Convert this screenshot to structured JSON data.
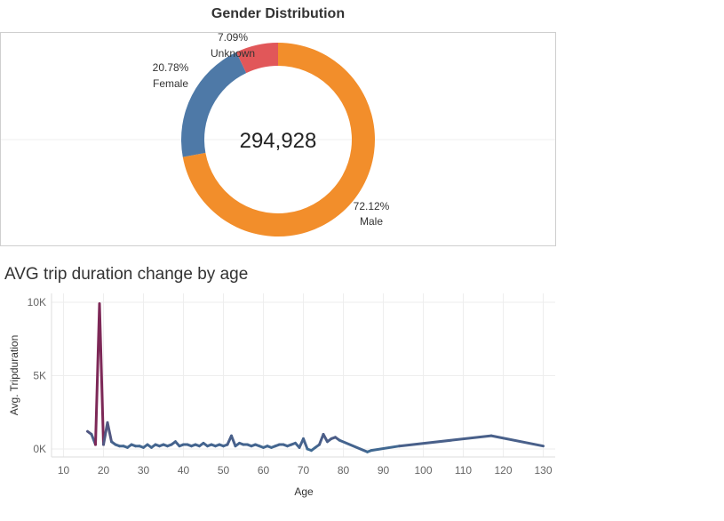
{
  "chart_data": [
    {
      "type": "pie",
      "title": "Gender Distribution",
      "center_label": "294,928",
      "slices": [
        {
          "name": "Male",
          "value": 72.12,
          "label": "72.12%",
          "color": "#F28E2B"
        },
        {
          "name": "Female",
          "value": 20.78,
          "label": "20.78%",
          "color": "#4E79A7"
        },
        {
          "name": "Unknown",
          "value": 7.09,
          "label": "7.09%",
          "color": "#E15759"
        }
      ]
    },
    {
      "type": "line",
      "title": "AVG trip duration change by age",
      "xlabel": "Age",
      "ylabel": "Avg. Tripduration",
      "xlim": [
        7,
        133
      ],
      "ylim": [
        0,
        10000
      ],
      "x_ticks": [
        10,
        20,
        30,
        40,
        50,
        60,
        70,
        80,
        90,
        100,
        110,
        120,
        130
      ],
      "y_ticks": [
        {
          "value": 0,
          "label": "0K"
        },
        {
          "value": 5000,
          "label": "5K"
        },
        {
          "value": 10000,
          "label": "10K"
        }
      ],
      "line_color": "#3E6B94",
      "peak_color": "#8A1A4A",
      "grid": true,
      "series": [
        {
          "x": [
            16,
            17,
            18,
            19,
            20,
            21,
            22,
            23,
            24,
            25,
            26,
            27,
            28,
            29,
            30,
            31,
            32,
            33,
            34,
            35,
            36,
            37,
            38,
            39,
            40,
            41,
            42,
            43,
            44,
            45,
            46,
            47,
            48,
            49,
            50,
            51,
            52,
            53,
            54,
            55,
            56,
            57,
            58,
            59,
            60,
            61,
            62,
            63,
            64,
            65,
            66,
            67,
            68,
            69,
            70,
            71,
            72,
            73,
            74,
            75,
            76,
            77,
            78,
            79,
            86,
            87,
            94,
            117,
            130
          ],
          "y": [
            1200,
            1000,
            300,
            9900,
            300,
            1800,
            500,
            300,
            200,
            200,
            100,
            300,
            200,
            200,
            100,
            300,
            100,
            300,
            200,
            300,
            200,
            300,
            500,
            200,
            300,
            300,
            200,
            300,
            200,
            400,
            200,
            300,
            200,
            300,
            200,
            300,
            900,
            200,
            400,
            300,
            300,
            200,
            300,
            200,
            100,
            200,
            100,
            200,
            300,
            300,
            200,
            300,
            400,
            100,
            700,
            0,
            -100,
            100,
            300,
            1000,
            500,
            700,
            800,
            600,
            -200,
            -100,
            200,
            900,
            200
          ]
        }
      ]
    }
  ]
}
